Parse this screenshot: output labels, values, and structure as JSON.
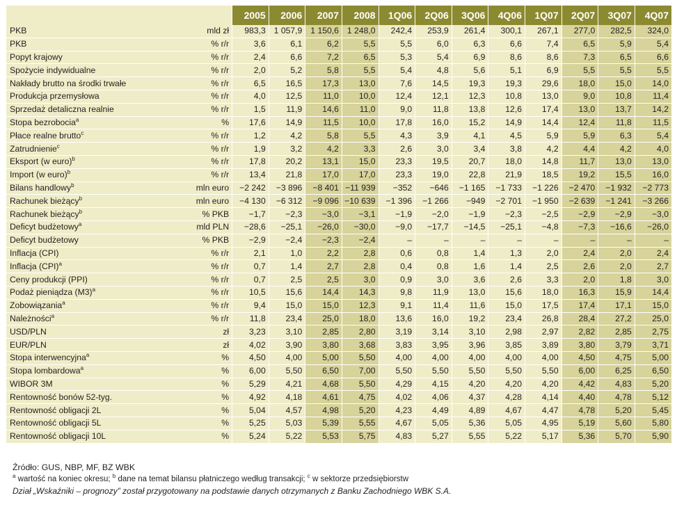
{
  "columns": [
    "2005",
    "2006",
    "2007",
    "2008",
    "1Q06",
    "2Q06",
    "3Q06",
    "4Q06",
    "1Q07",
    "2Q07",
    "3Q07",
    "4Q07"
  ],
  "forecast_columns": [
    2,
    3,
    9,
    10,
    11
  ],
  "rows": [
    {
      "name": "PKB",
      "sup": "",
      "unit": "mld zł",
      "values": [
        "983,3",
        "1 057,9",
        "1 150,6",
        "1 248,0",
        "242,4",
        "253,9",
        "261,4",
        "300,1",
        "267,1",
        "277,0",
        "282,5",
        "324,0"
      ]
    },
    {
      "name": "PKB",
      "sup": "",
      "unit": "% r/r",
      "values": [
        "3,6",
        "6,1",
        "6,2",
        "5,5",
        "5,5",
        "6,0",
        "6,3",
        "6,6",
        "7,4",
        "6,5",
        "5,9",
        "5,4"
      ]
    },
    {
      "name": "Popyt krajowy",
      "sup": "",
      "unit": "% r/r",
      "values": [
        "2,4",
        "6,6",
        "7,2",
        "6,5",
        "5,3",
        "5,4",
        "6,9",
        "8,6",
        "8,6",
        "7,3",
        "6,5",
        "6,6"
      ]
    },
    {
      "name": "Spożycie indywidualne",
      "sup": "",
      "unit": "% r/r",
      "values": [
        "2,0",
        "5,2",
        "5,8",
        "5,5",
        "5,4",
        "4,8",
        "5,6",
        "5,1",
        "6,9",
        "5,5",
        "5,5",
        "5,5"
      ]
    },
    {
      "name": "Nakłady brutto na środki trwałe",
      "sup": "",
      "unit": "% r/r",
      "values": [
        "6,5",
        "16,5",
        "17,3",
        "13,0",
        "7,6",
        "14,5",
        "19,3",
        "19,3",
        "29,6",
        "18,0",
        "15,0",
        "14,0"
      ]
    },
    {
      "name": "Produkcja przemysłowa",
      "sup": "",
      "unit": "% r/r",
      "values": [
        "4,0",
        "12,5",
        "11,0",
        "10,0",
        "12,4",
        "12,1",
        "12,3",
        "10,8",
        "13,0",
        "9,0",
        "10,8",
        "11,4"
      ]
    },
    {
      "name": "Sprzedaż detaliczna realnie",
      "sup": "",
      "unit": "% r/r",
      "values": [
        "1,5",
        "11,9",
        "14,6",
        "11,0",
        "9,0",
        "11,8",
        "13,8",
        "12,6",
        "17,4",
        "13,0",
        "13,7",
        "14,2"
      ]
    },
    {
      "name": "Stopa bezrobocia",
      "sup": "a",
      "unit": "%",
      "values": [
        "17,6",
        "14,9",
        "11,5",
        "10,0",
        "17,8",
        "16,0",
        "15,2",
        "14,9",
        "14,4",
        "12,4",
        "11,8",
        "11,5"
      ]
    },
    {
      "name": "Płace realne brutto",
      "sup": "c",
      "unit": "% r/r",
      "values": [
        "1,2",
        "4,2",
        "5,8",
        "5,5",
        "4,3",
        "3,9",
        "4,1",
        "4,5",
        "5,9",
        "5,9",
        "6,3",
        "5,4"
      ]
    },
    {
      "name": "Zatrudnienie",
      "sup": "c",
      "unit": "% r/r",
      "values": [
        "1,9",
        "3,2",
        "4,2",
        "3,3",
        "2,6",
        "3,0",
        "3,4",
        "3,8",
        "4,2",
        "4,4",
        "4,2",
        "4,0"
      ]
    },
    {
      "name": "Eksport (w euro)",
      "sup": "b",
      "unit": "% r/r",
      "values": [
        "17,8",
        "20,2",
        "13,1",
        "15,0",
        "23,3",
        "19,5",
        "20,7",
        "18,0",
        "14,8",
        "11,7",
        "13,0",
        "13,0"
      ]
    },
    {
      "name": "Import (w euro)",
      "sup": "b",
      "unit": "% r/r",
      "values": [
        "13,4",
        "21,8",
        "17,0",
        "17,0",
        "23,3",
        "19,0",
        "22,8",
        "21,9",
        "18,5",
        "19,2",
        "15,5",
        "16,0"
      ]
    },
    {
      "name": "Bilans handlowy",
      "sup": "b",
      "unit": "mln euro",
      "values": [
        "−2 242",
        "−3 896",
        "−8 401",
        "−11 939",
        "−352",
        "−646",
        "−1 165",
        "−1 733",
        "−1 226",
        "−2 470",
        "−1 932",
        "−2 773"
      ]
    },
    {
      "name": "Rachunek bieżący",
      "sup": "b",
      "unit": "mln euro",
      "values": [
        "−4 130",
        "−6 312",
        "−9 096",
        "−10 639",
        "−1 396",
        "−1 266",
        "−949",
        "−2 701",
        "−1 950",
        "−2 639",
        "−1 241",
        "−3 266"
      ]
    },
    {
      "name": "Rachunek bieżący",
      "sup": "b",
      "unit": "% PKB",
      "values": [
        "−1,7",
        "−2,3",
        "−3,0",
        "−3,1",
        "−1,9",
        "−2,0",
        "−1,9",
        "−2,3",
        "−2,5",
        "−2,9",
        "−2,9",
        "−3,0"
      ]
    },
    {
      "name": "Deficyt budżetowy",
      "sup": "a",
      "unit": "mld PLN",
      "values": [
        "−28,6",
        "−25,1",
        "−26,0",
        "−30,0",
        "−9,0",
        "−17,7",
        "−14,5",
        "−25,1",
        "−4,8",
        "−7,3",
        "−16,6",
        "−26,0"
      ]
    },
    {
      "name": "Deficyt budżetowy",
      "sup": "",
      "unit": "% PKB",
      "values": [
        "−2,9",
        "−2,4",
        "−2,3",
        "−2,4",
        "–",
        "–",
        "–",
        "–",
        "–",
        "–",
        "–",
        "–"
      ]
    },
    {
      "name": "Inflacja (CPI)",
      "sup": "",
      "unit": "% r/r",
      "values": [
        "2,1",
        "1,0",
        "2,2",
        "2,8",
        "0,6",
        "0,8",
        "1,4",
        "1,3",
        "2,0",
        "2,4",
        "2,0",
        "2,4"
      ]
    },
    {
      "name": "Inflacja (CPI)",
      "sup": "a",
      "unit": "% r/r",
      "values": [
        "0,7",
        "1,4",
        "2,7",
        "2,8",
        "0,4",
        "0,8",
        "1,6",
        "1,4",
        "2,5",
        "2,6",
        "2,0",
        "2,7"
      ]
    },
    {
      "name": "Ceny produkcji (PPI)",
      "sup": "",
      "unit": "% r/r",
      "values": [
        "0,7",
        "2,5",
        "2,5",
        "3,0",
        "0,9",
        "3,0",
        "3,6",
        "2,6",
        "3,3",
        "2,0",
        "1,8",
        "3,0"
      ]
    },
    {
      "name": "Podaż pieniądza (M3)",
      "sup": "a",
      "unit": "% r/r",
      "values": [
        "10,5",
        "15,6",
        "14,4",
        "14,3",
        "9,8",
        "11,9",
        "13,0",
        "15,6",
        "18,0",
        "16,3",
        "15,9",
        "14,4"
      ]
    },
    {
      "name": "Zobowiązania",
      "sup": "a",
      "unit": "% r/r",
      "values": [
        "9,4",
        "15,0",
        "15,0",
        "12,3",
        "9,1",
        "11,4",
        "11,6",
        "15,0",
        "17,5",
        "17,4",
        "17,1",
        "15,0"
      ]
    },
    {
      "name": "Należności",
      "sup": "a",
      "unit": "% r/r",
      "values": [
        "11,8",
        "23,4",
        "25,0",
        "18,0",
        "13,6",
        "16,0",
        "19,2",
        "23,4",
        "26,8",
        "28,4",
        "27,2",
        "25,0"
      ]
    },
    {
      "name": "USD/PLN",
      "sup": "",
      "unit": "zł",
      "values": [
        "3,23",
        "3,10",
        "2,85",
        "2,80",
        "3,19",
        "3,14",
        "3,10",
        "2,98",
        "2,97",
        "2,82",
        "2,85",
        "2,75"
      ]
    },
    {
      "name": "EUR/PLN",
      "sup": "",
      "unit": "zł",
      "values": [
        "4,02",
        "3,90",
        "3,80",
        "3,68",
        "3,83",
        "3,95",
        "3,96",
        "3,85",
        "3,89",
        "3,80",
        "3,79",
        "3,71"
      ]
    },
    {
      "name": "Stopa interwencyjna",
      "sup": "a",
      "unit": "%",
      "values": [
        "4,50",
        "4,00",
        "5,00",
        "5,50",
        "4,00",
        "4,00",
        "4,00",
        "4,00",
        "4,00",
        "4,50",
        "4,75",
        "5,00"
      ]
    },
    {
      "name": "Stopa lombardowa",
      "sup": "a",
      "unit": "%",
      "values": [
        "6,00",
        "5,50",
        "6,50",
        "7,00",
        "5,50",
        "5,50",
        "5,50",
        "5,50",
        "5,50",
        "6,00",
        "6,25",
        "6,50"
      ]
    },
    {
      "name": "WIBOR 3M",
      "sup": "",
      "unit": "%",
      "values": [
        "5,29",
        "4,21",
        "4,68",
        "5,50",
        "4,29",
        "4,15",
        "4,20",
        "4,20",
        "4,20",
        "4,42",
        "4,83",
        "5,20"
      ]
    },
    {
      "name": "Rentowność bonów 52-tyg.",
      "sup": "",
      "unit": "%",
      "values": [
        "4,92",
        "4,18",
        "4,61",
        "4,75",
        "4,02",
        "4,06",
        "4,37",
        "4,28",
        "4,14",
        "4,40",
        "4,78",
        "5,12"
      ]
    },
    {
      "name": "Rentowność obligacji 2L",
      "sup": "",
      "unit": "%",
      "values": [
        "5,04",
        "4,57",
        "4,98",
        "5,20",
        "4,23",
        "4,49",
        "4,89",
        "4,67",
        "4,47",
        "4,78",
        "5,20",
        "5,45"
      ]
    },
    {
      "name": "Rentowność obligacji 5L",
      "sup": "",
      "unit": "%",
      "values": [
        "5,25",
        "5,03",
        "5,39",
        "5,55",
        "4,67",
        "5,05",
        "5,36",
        "5,05",
        "4,95",
        "5,19",
        "5,60",
        "5,80"
      ]
    },
    {
      "name": "Rentowność obligacji 10L",
      "sup": "",
      "unit": "%",
      "values": [
        "5,24",
        "5,22",
        "5,53",
        "5,75",
        "4,83",
        "5,27",
        "5,55",
        "5,22",
        "5,17",
        "5,36",
        "5,70",
        "5,90"
      ]
    }
  ],
  "notes": {
    "source": "Źródło: GUS, NBP, MF, BZ WBK",
    "fn_a_mark": "a",
    "fn_a": " wartość na koniec okresu; ",
    "fn_b_mark": "b",
    "fn_b": " dane na temat bilansu płatniczego według transakcji; ",
    "fn_c_mark": "c",
    "fn_c": " w sektorze przedsiębiorstw",
    "credit": "Dział „Wskaźniki – prognozy” został przygotowany na podstawie danych otrzymanych z Banku Zachodniego WBK S.A."
  },
  "colors": {
    "header": "#8c8a30",
    "history_cell": "#efecc8",
    "forecast_cell": "#d7d39a"
  }
}
